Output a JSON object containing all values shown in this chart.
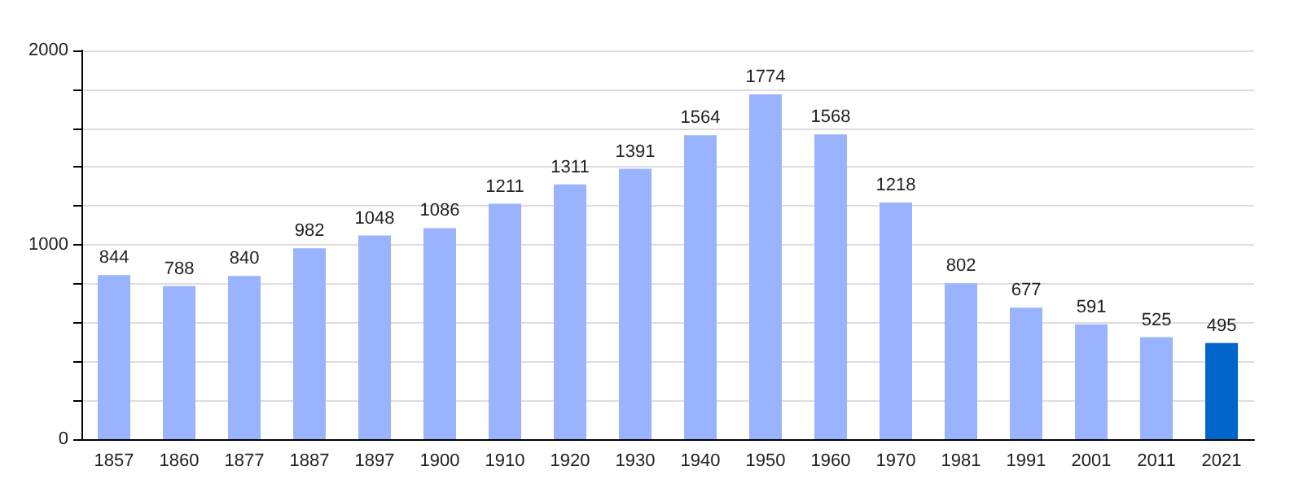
{
  "chart_data": {
    "type": "bar",
    "categories": [
      "1857",
      "1860",
      "1877",
      "1887",
      "1897",
      "1900",
      "1910",
      "1920",
      "1930",
      "1940",
      "1950",
      "1960",
      "1970",
      "1981",
      "1991",
      "2001",
      "2011",
      "2021"
    ],
    "values": [
      844,
      788,
      840,
      982,
      1048,
      1086,
      1211,
      1311,
      1391,
      1564,
      1774,
      1568,
      1218,
      802,
      677,
      591,
      525,
      495
    ],
    "colors": [
      "#99b3ff",
      "#99b3ff",
      "#99b3ff",
      "#99b3ff",
      "#99b3ff",
      "#99b3ff",
      "#99b3ff",
      "#99b3ff",
      "#99b3ff",
      "#99b3ff",
      "#99b3ff",
      "#99b3ff",
      "#99b3ff",
      "#99b3ff",
      "#99b3ff",
      "#99b3ff",
      "#99b3ff",
      "#0066cc"
    ],
    "ylim": [
      0,
      2000
    ],
    "yticks": [
      0,
      {
        "value": 200,
        "label": null
      },
      {
        "value": 400,
        "label": null
      },
      {
        "value": 600,
        "label": null
      },
      {
        "value": 800,
        "label": null
      },
      1000,
      {
        "value": 1200,
        "label": null
      },
      {
        "value": 1400,
        "label": null
      },
      {
        "value": 1600,
        "label": null
      },
      {
        "value": 1800,
        "label": null
      },
      2000
    ],
    "grid": "y",
    "data_labels": true
  }
}
